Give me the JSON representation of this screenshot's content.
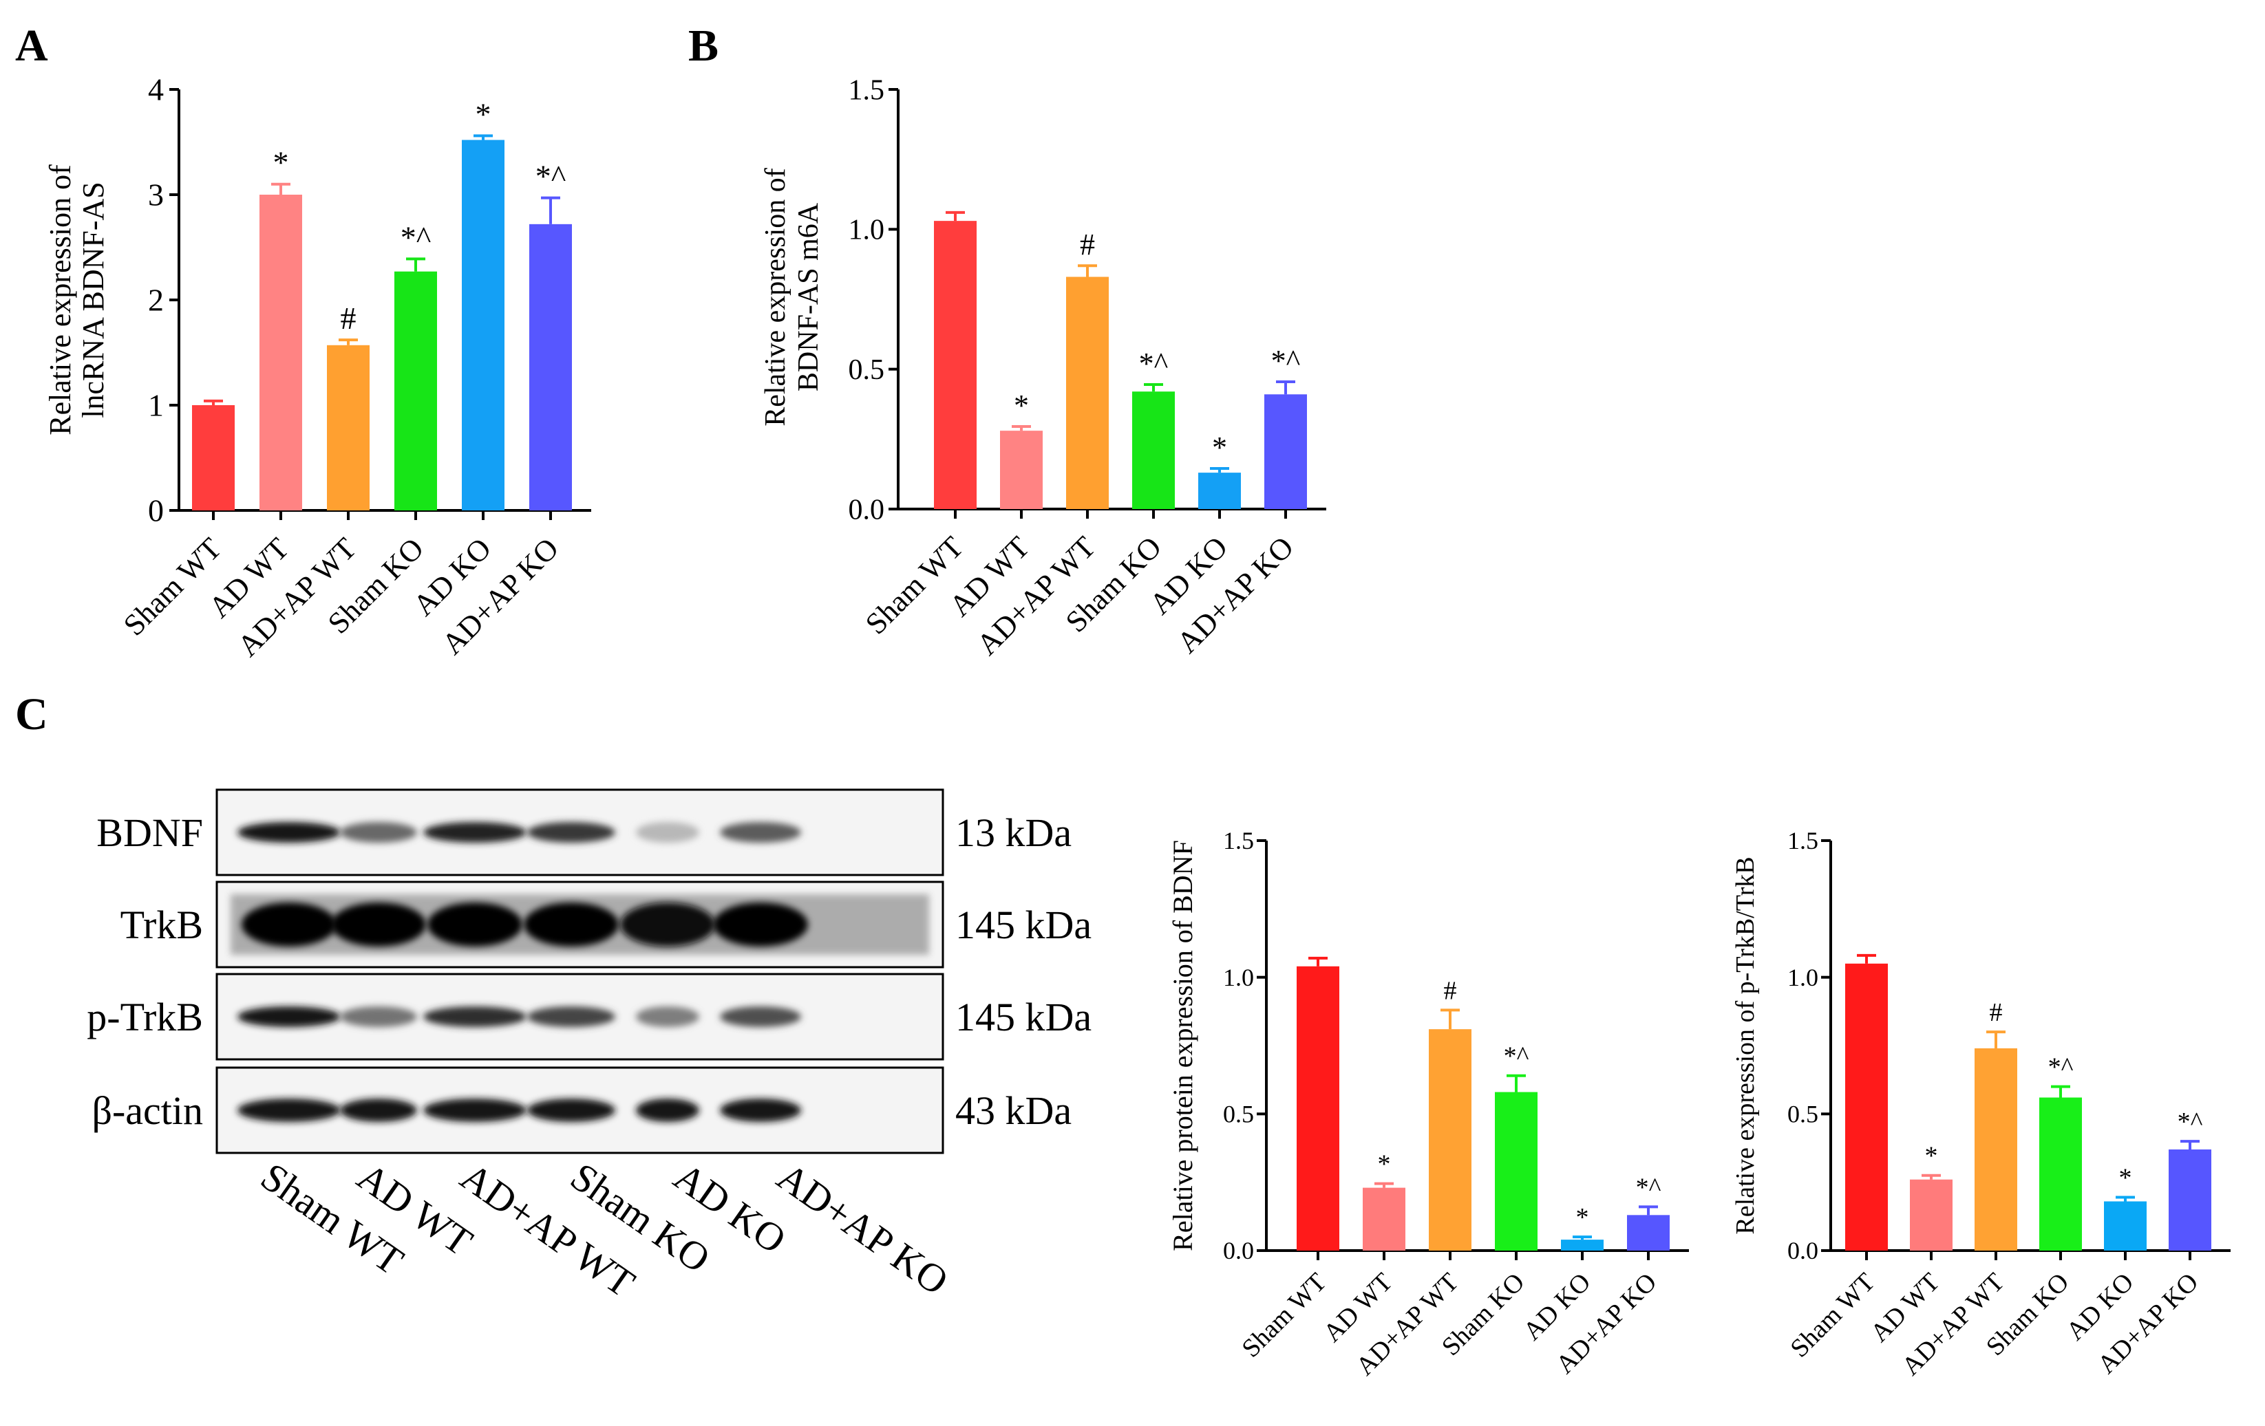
{
  "figure": {
    "panel_labels": [
      "A",
      "B",
      "C"
    ],
    "blot": {
      "rows": [
        {
          "name": "BDNF",
          "size": "13 kDa",
          "intensity": [
            0.9,
            0.55,
            0.85,
            0.75,
            0.2,
            0.6
          ]
        },
        {
          "name": "TrkB",
          "size": "145 kDa",
          "intensity": [
            1,
            1,
            1,
            1,
            0.95,
            1
          ]
        },
        {
          "name": "p-TrkB",
          "size": "145 kDa",
          "intensity": [
            0.9,
            0.5,
            0.8,
            0.7,
            0.45,
            0.65
          ]
        },
        {
          "name": "β-actin",
          "size": "43 kDa",
          "intensity": [
            0.9,
            0.9,
            0.9,
            0.9,
            0.9,
            0.9
          ]
        }
      ],
      "lanes": [
        "Sham WT",
        "AD WT",
        "AD+AP WT",
        "Sham KO",
        "AD KO",
        "AD+AP KO"
      ]
    }
  },
  "chart_data": [
    {
      "type": "bar",
      "panel": "A",
      "categories": [
        "Sham WT",
        "AD WT",
        "AD+AP WT",
        "Sham KO",
        "AD KO",
        "AD+AP KO"
      ],
      "values": [
        1.0,
        3.0,
        1.57,
        2.27,
        3.52,
        2.72
      ],
      "errors": [
        0.04,
        0.1,
        0.05,
        0.12,
        0.04,
        0.25
      ],
      "annotations": [
        "",
        "*",
        "#",
        "*^",
        "*",
        "*^"
      ],
      "colors": [
        "#ff3d3d",
        "#ff8383",
        "#ffa030",
        "#17e517",
        "#14a0f5",
        "#5757ff"
      ],
      "ylabel_lines": [
        "Relative expression of",
        "lncRNA BDNF-AS"
      ],
      "ylim": [
        0,
        4
      ],
      "yticks": [
        "0",
        "1",
        "2",
        "3",
        "4"
      ]
    },
    {
      "type": "bar",
      "panel": "B",
      "categories": [
        "Sham WT",
        "AD WT",
        "AD+AP WT",
        "Sham KO",
        "AD KO",
        "AD+AP KO"
      ],
      "values": [
        1.03,
        0.28,
        0.83,
        0.42,
        0.13,
        0.41
      ],
      "errors": [
        0.03,
        0.015,
        0.04,
        0.025,
        0.015,
        0.045
      ],
      "annotations": [
        "",
        "*",
        "#",
        "*^",
        "*",
        "*^"
      ],
      "colors": [
        "#ff3d3d",
        "#ff8383",
        "#ffa030",
        "#17e517",
        "#14a0f5",
        "#5757ff"
      ],
      "ylabel_lines": [
        "Relative expression of",
        "BDNF-AS  m6A"
      ],
      "ylim": [
        0,
        1.5
      ],
      "yticks": [
        "0.0",
        "0.5",
        "1.0",
        "1.5"
      ]
    },
    {
      "type": "bar",
      "panel": "C-BDNF",
      "categories": [
        "Sham WT",
        "AD WT",
        "AD+AP WT",
        "Sham KO",
        "AD KO",
        "AD+AP KO"
      ],
      "values": [
        1.04,
        0.23,
        0.81,
        0.58,
        0.04,
        0.13
      ],
      "errors": [
        0.03,
        0.015,
        0.07,
        0.06,
        0.01,
        0.03
      ],
      "annotations": [
        "",
        "*",
        "#",
        "*^",
        "*",
        "*^"
      ],
      "colors": [
        "#ff1a1a",
        "#ff7b7b",
        "#ffa233",
        "#18ef18",
        "#0aa8f5",
        "#5656ff"
      ],
      "ylabel_lines": [
        "Relative protein expression of BDNF"
      ],
      "ylim": [
        0,
        1.5
      ],
      "yticks": [
        "0.0",
        "0.5",
        "1.0",
        "1.5"
      ]
    },
    {
      "type": "bar",
      "panel": "C-pTrkB",
      "categories": [
        "Sham WT",
        "AD WT",
        "AD+AP WT",
        "Sham KO",
        "AD KO",
        "AD+AP KO"
      ],
      "values": [
        1.05,
        0.26,
        0.74,
        0.56,
        0.18,
        0.37
      ],
      "errors": [
        0.03,
        0.015,
        0.06,
        0.04,
        0.015,
        0.03
      ],
      "annotations": [
        "",
        "*",
        "#",
        "*^",
        "*",
        "*^"
      ],
      "colors": [
        "#ff1a1a",
        "#ff7b7b",
        "#ffa233",
        "#18ef18",
        "#0aa8f5",
        "#5656ff"
      ],
      "ylabel_lines": [
        "Relative expression of p-TrkB/TrkB"
      ],
      "ylim": [
        0,
        1.5
      ],
      "yticks": [
        "0.0",
        "0.5",
        "1.0",
        "1.5"
      ]
    }
  ]
}
